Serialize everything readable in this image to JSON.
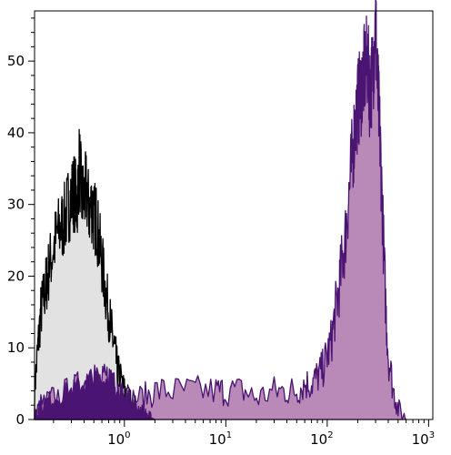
{
  "chart_data": {
    "type": "area",
    "title": "",
    "xlabel": "",
    "ylabel": "",
    "x_scale": "log",
    "xlim": [
      0.13,
      1100
    ],
    "ylim": [
      0,
      57
    ],
    "grid": false,
    "x_ticks": [
      {
        "value": 1,
        "base": "10",
        "exp": "0"
      },
      {
        "value": 10,
        "base": "10",
        "exp": "1"
      },
      {
        "value": 100,
        "base": "10",
        "exp": "2"
      },
      {
        "value": 1000,
        "base": "10",
        "exp": "3"
      }
    ],
    "y_ticks": [
      {
        "value": 0,
        "label": "0"
      },
      {
        "value": 10,
        "label": "10"
      },
      {
        "value": 20,
        "label": "20"
      },
      {
        "value": 30,
        "label": "30"
      },
      {
        "value": 40,
        "label": "40"
      },
      {
        "value": 50,
        "label": "50"
      }
    ],
    "series": [
      {
        "key": "control",
        "fill": "#e2e2e2",
        "stroke": "#000000",
        "x": [
          0.13,
          0.14,
          0.15,
          0.16,
          0.17,
          0.18,
          0.2,
          0.22,
          0.24,
          0.26,
          0.28,
          0.3,
          0.32,
          0.34,
          0.36,
          0.38,
          0.4,
          0.42,
          0.45,
          0.48,
          0.5,
          0.53,
          0.56,
          0.6,
          0.65,
          0.7,
          0.75,
          0.8,
          0.85,
          0.9,
          1.0,
          1.1,
          1.2,
          1.4,
          1.6,
          1.8,
          2.0
        ],
        "y": [
          4,
          10,
          15,
          17,
          19,
          21,
          24,
          26,
          27,
          28,
          30,
          31,
          32,
          30,
          36,
          31,
          31,
          32,
          29,
          30,
          28,
          28,
          25,
          22,
          18,
          15,
          12,
          10,
          7,
          6,
          4,
          3,
          2,
          1.5,
          0.8,
          0.3,
          0
        ]
      },
      {
        "key": "stained",
        "fill": "#b98ab8",
        "stroke": "#4a1472",
        "x": [
          0.13,
          0.15,
          0.2,
          0.3,
          0.4,
          0.5,
          0.6,
          0.7,
          0.8,
          1.0,
          1.5,
          2,
          3,
          5,
          8,
          10,
          15,
          20,
          30,
          40,
          50,
          60,
          70,
          80,
          90,
          100,
          110,
          120,
          130,
          140,
          150,
          160,
          170,
          180,
          190,
          200,
          210,
          220,
          230,
          240,
          250,
          260,
          270,
          280,
          290,
          300,
          310,
          320,
          330,
          340,
          360,
          380,
          400,
          450,
          500,
          600
        ],
        "y": [
          0.5,
          2,
          3,
          4,
          5,
          6,
          5,
          6,
          5,
          3,
          3,
          4,
          4,
          4,
          4,
          4,
          4,
          3,
          4,
          4,
          4,
          5,
          5,
          6,
          7,
          9,
          11,
          15,
          18,
          22,
          25,
          30,
          34,
          38,
          42,
          44,
          45,
          47,
          48,
          49,
          50,
          46,
          47,
          48,
          52,
          56,
          48,
          44,
          40,
          35,
          24,
          15,
          9,
          4,
          1.5,
          0
        ]
      },
      {
        "key": "overlap",
        "fill": "#4a1472",
        "stroke": "#4a1472",
        "x": [
          0.13,
          0.15,
          0.2,
          0.3,
          0.4,
          0.5,
          0.6,
          0.7,
          0.8,
          0.9,
          1.0,
          1.1,
          1.2,
          1.4,
          1.6,
          1.8,
          2.0
        ],
        "y": [
          0.5,
          2,
          3,
          4,
          5,
          6,
          5,
          6,
          5,
          4,
          3,
          3,
          2,
          1.5,
          0.8,
          0.3,
          0
        ]
      }
    ]
  }
}
